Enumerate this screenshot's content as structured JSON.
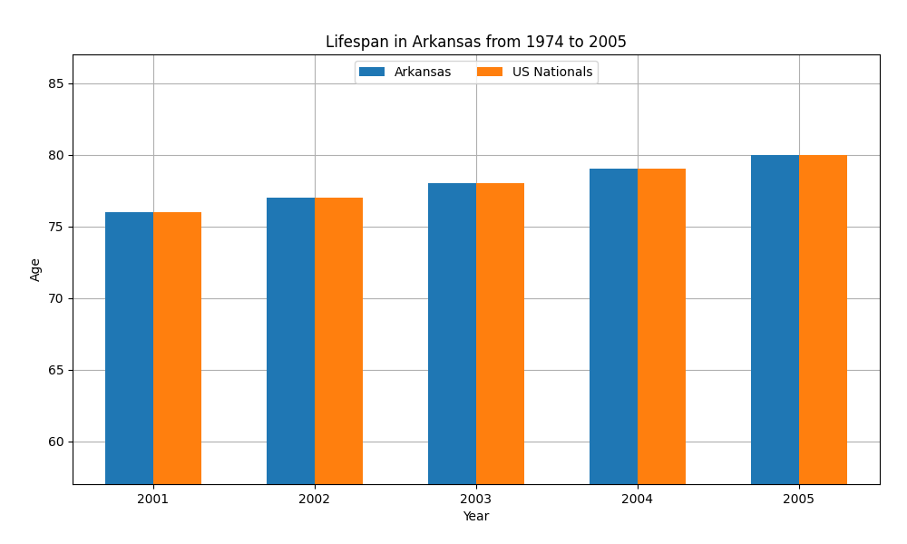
{
  "chart_data": {
    "type": "bar",
    "title": "Lifespan in Arkansas from 1974 to 2005",
    "x_label": "Year",
    "y_label": "Age",
    "categories": [
      "2001",
      "2002",
      "2003",
      "2004",
      "2005"
    ],
    "series": [
      {
        "name": "Arkansas",
        "values": [
          76,
          77,
          78,
          79,
          80
        ]
      },
      {
        "name": "US Nationals",
        "values": [
          76,
          77,
          78,
          79,
          80
        ]
      }
    ],
    "ylim": [
      57,
      87
    ],
    "yticks": [
      60,
      65,
      70,
      75,
      80,
      85
    ],
    "grid": true,
    "legend": "upper center"
  }
}
